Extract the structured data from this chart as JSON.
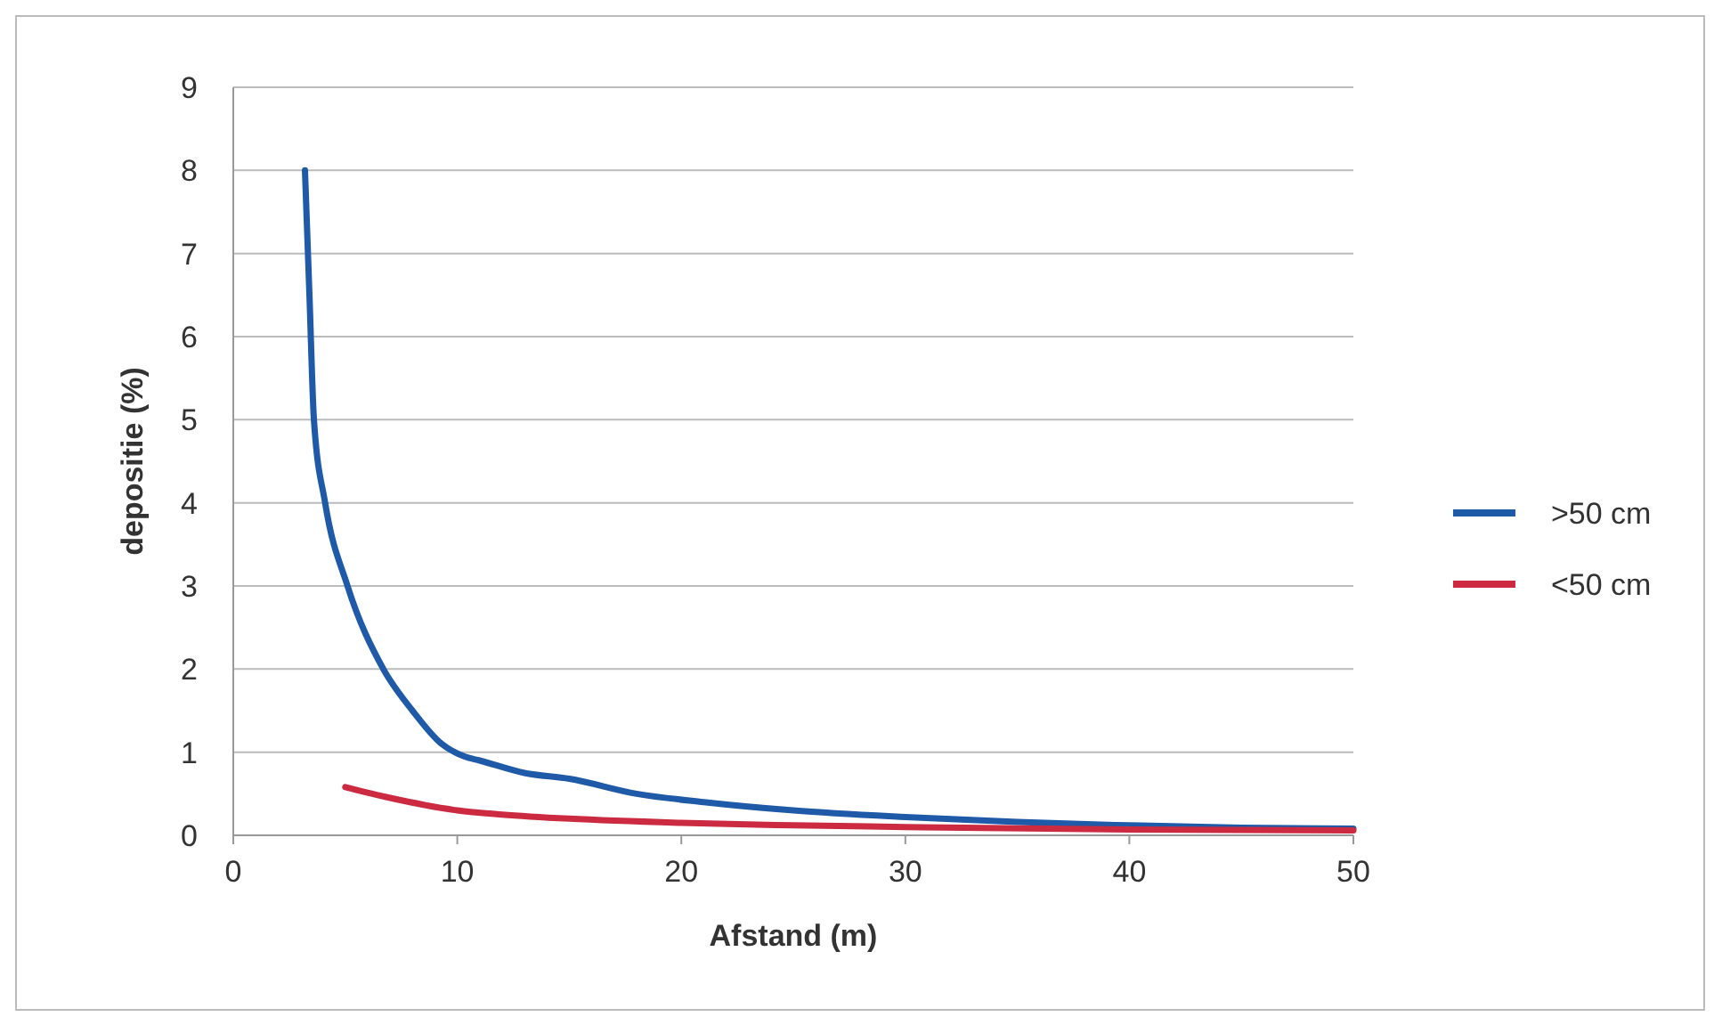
{
  "chart_data": {
    "type": "line",
    "xlabel": "Afstand (m)",
    "ylabel": "depositie (%)",
    "xlim": [
      0,
      50
    ],
    "xticks": [
      0,
      10,
      20,
      30,
      40,
      50
    ],
    "ylim": [
      0,
      9
    ],
    "yticks": [
      0,
      1,
      2,
      3,
      4,
      5,
      6,
      7,
      8,
      9
    ],
    "grid": "y",
    "legend": "right",
    "marker": "none",
    "series": [
      {
        "name": ">50 cm",
        "color": "#1f5aa8",
        "x": [
          3.2,
          3.4,
          3.6,
          4.1,
          5.1,
          6.7,
          8,
          9.3,
          10.3,
          11,
          13,
          15,
          18,
          21,
          25,
          30,
          35,
          40,
          45,
          50
        ],
        "values": [
          8,
          6.5,
          5,
          4,
          3,
          2,
          1.5,
          1.1,
          0.95,
          0.9,
          0.75,
          0.68,
          0.5,
          0.4,
          0.3,
          0.22,
          0.16,
          0.12,
          0.09,
          0.08
        ]
      },
      {
        "name": "<50 cm",
        "color": "#cc2a40",
        "x": [
          5,
          7,
          10,
          12,
          15,
          20,
          25,
          30,
          40,
          50
        ],
        "values": [
          0.58,
          0.45,
          0.3,
          0.25,
          0.2,
          0.15,
          0.12,
          0.1,
          0.07,
          0.06
        ]
      }
    ]
  }
}
